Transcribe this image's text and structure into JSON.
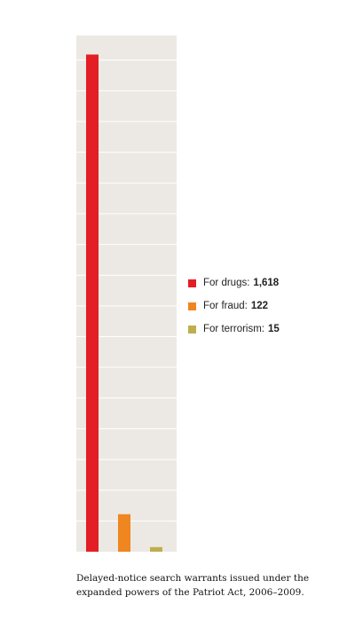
{
  "chart_data": {
    "type": "bar",
    "categories": [
      "For drugs:",
      "For fraud:",
      "For terrorism:"
    ],
    "values": [
      1618,
      122,
      15
    ],
    "value_labels": [
      "1,618",
      "122",
      "15"
    ],
    "colors": [
      "#e31e24",
      "#f0861f",
      "#bfae4e"
    ],
    "ylim": [
      0,
      1680
    ],
    "grid": true,
    "legend_position": "right",
    "title": "",
    "xlabel": "",
    "ylabel": ""
  },
  "caption": "Delayed-notice search warrants issued under the expanded powers of the Patriot Act, 2006–2009."
}
